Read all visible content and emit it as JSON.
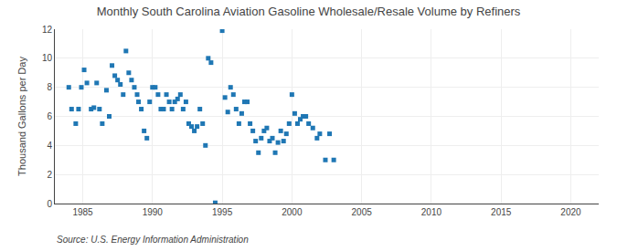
{
  "chart_data": {
    "type": "scatter",
    "title": "Monthly South Carolina Aviation Gasoline Wholesale/Resale Volume by Refiners",
    "ylabel": "Thousand Gallons per Day",
    "annotations": [
      "Source: U.S. Energy Information Administration"
    ],
    "marker": "square",
    "grid": true,
    "xlim": [
      1983.0,
      2022.0
    ],
    "ylim": [
      0,
      12
    ],
    "xticks": [
      1985,
      1990,
      1995,
      2000,
      2005,
      2010,
      2015,
      2020
    ],
    "yticks": [
      0,
      2,
      4,
      6,
      8,
      10,
      12
    ],
    "x": [
      1984.0,
      1984.2,
      1984.5,
      1984.7,
      1984.9,
      1985.1,
      1985.3,
      1985.6,
      1985.8,
      1986.0,
      1986.2,
      1986.4,
      1986.7,
      1986.9,
      1987.1,
      1987.3,
      1987.5,
      1987.7,
      1987.9,
      1988.1,
      1988.3,
      1988.5,
      1988.7,
      1988.9,
      1989.0,
      1989.2,
      1989.4,
      1989.6,
      1989.8,
      1990.0,
      1990.2,
      1990.4,
      1990.6,
      1990.8,
      1991.0,
      1991.2,
      1991.4,
      1991.6,
      1991.8,
      1992.0,
      1992.2,
      1992.4,
      1992.6,
      1992.8,
      1993.0,
      1993.2,
      1993.4,
      1993.6,
      1993.8,
      1994.0,
      1994.2,
      1994.5,
      1995.0,
      1995.2,
      1995.4,
      1995.6,
      1995.8,
      1996.0,
      1996.2,
      1996.4,
      1996.6,
      1996.8,
      1997.0,
      1997.2,
      1997.4,
      1997.6,
      1997.8,
      1998.0,
      1998.2,
      1998.4,
      1998.6,
      1998.8,
      1999.0,
      1999.2,
      1999.4,
      1999.6,
      1999.8,
      2000.0,
      2000.2,
      2000.4,
      2000.6,
      2000.8,
      2001.0,
      2001.2,
      2001.5,
      2001.8,
      2002.0,
      2002.4,
      2002.7,
      2003.0
    ],
    "values": [
      8.0,
      6.5,
      5.5,
      6.5,
      8.0,
      9.2,
      8.3,
      6.5,
      6.6,
      8.3,
      6.5,
      5.5,
      7.8,
      6.0,
      9.5,
      8.8,
      8.5,
      8.2,
      7.5,
      10.5,
      9.0,
      8.5,
      8.0,
      7.5,
      7.0,
      6.5,
      5.0,
      4.5,
      7.0,
      8.0,
      8.0,
      7.5,
      6.5,
      6.5,
      7.5,
      7.0,
      6.5,
      7.0,
      7.2,
      7.5,
      6.5,
      7.0,
      5.5,
      5.3,
      5.0,
      5.3,
      6.5,
      5.5,
      4.0,
      10.0,
      9.7,
      0.05,
      11.9,
      7.3,
      6.3,
      8.0,
      7.5,
      6.5,
      5.5,
      6.2,
      7.0,
      7.0,
      5.5,
      5.0,
      4.3,
      3.5,
      4.5,
      5.0,
      5.2,
      4.3,
      4.5,
      3.5,
      4.2,
      5.0,
      4.3,
      4.8,
      5.5,
      7.5,
      6.2,
      5.5,
      5.8,
      6.0,
      6.0,
      5.5,
      5.2,
      4.5,
      4.8,
      3.0,
      4.8,
      3.0
    ]
  }
}
